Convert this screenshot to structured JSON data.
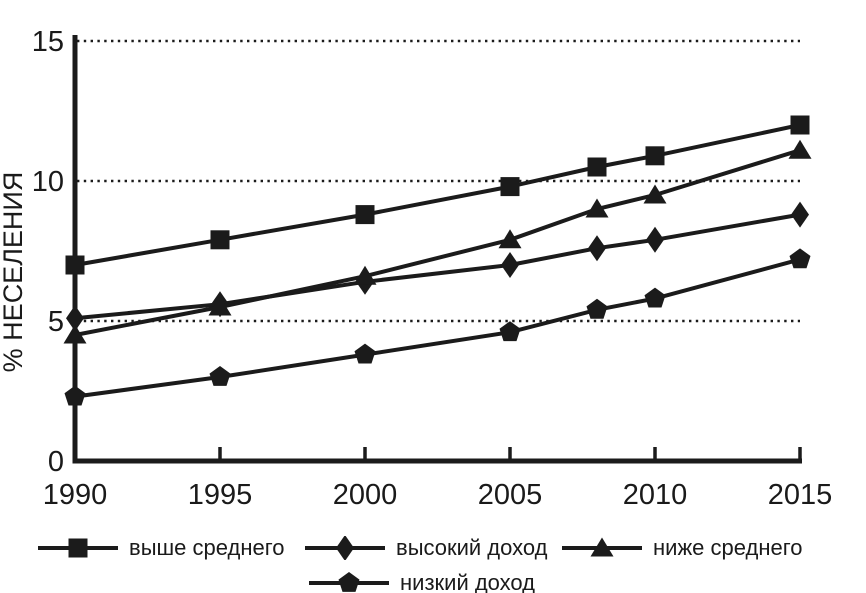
{
  "figure": {
    "background": "#ffffff",
    "line_color": "#1b1b1b",
    "text_color": "#1a1a1a"
  },
  "chart_data": {
    "type": "line",
    "title": "",
    "xlabel": "",
    "ylabel": "% НЕСЕЛЕНИЯ",
    "x": [
      1990,
      1995,
      2000,
      2005,
      2008,
      2010,
      2015
    ],
    "xticks": [
      1990,
      1995,
      2000,
      2005,
      2010,
      2015
    ],
    "yticks": [
      0,
      5,
      10,
      15
    ],
    "xlim": [
      1990,
      2015
    ],
    "ylim": [
      0,
      15
    ],
    "grid": "horizontal-dotted",
    "legend_position": "bottom",
    "series": [
      {
        "name": "выше среднего",
        "marker": "square",
        "values": [
          7.0,
          7.9,
          8.8,
          9.8,
          10.5,
          10.9,
          12.0
        ]
      },
      {
        "name": "высокий доход",
        "marker": "diamond",
        "values": [
          5.1,
          5.6,
          6.4,
          7.0,
          7.6,
          7.9,
          8.8
        ]
      },
      {
        "name": "ниже среднего",
        "marker": "triangle",
        "values": [
          4.5,
          5.5,
          6.6,
          7.9,
          9.0,
          9.5,
          11.1
        ]
      },
      {
        "name": "низкий доход",
        "marker": "pentagon",
        "values": [
          2.3,
          3.0,
          3.8,
          4.6,
          5.4,
          5.8,
          7.2
        ]
      }
    ]
  }
}
